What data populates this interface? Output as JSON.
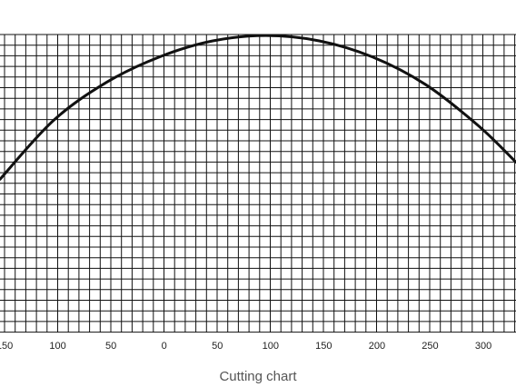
{
  "chart_data": {
    "type": "line",
    "title": "",
    "xlabel": "",
    "ylabel": "",
    "caption": "Cutting chart",
    "x_tick_labels": [
      "150",
      "100",
      "50",
      "0",
      "50",
      "100",
      "150",
      "200",
      "250",
      "300"
    ],
    "x_tick_positions": [
      -150,
      -100,
      -50,
      0,
      50,
      100,
      150,
      200,
      250,
      300
    ],
    "xlim": [
      -150,
      335
    ],
    "ylim": [
      0,
      28
    ],
    "grid": true,
    "series": [
      {
        "name": "",
        "color": "#111111",
        "x": [
          -150,
          -100,
          -50,
          0,
          50,
          100,
          150,
          200,
          250,
          300,
          335
        ],
        "y": [
          14.4,
          19.9,
          23.5,
          25.9,
          27.4,
          27.9,
          27.4,
          25.9,
          23.3,
          19.4,
          16.0
        ]
      }
    ]
  },
  "colors": {
    "grid": "#111111",
    "curve": "#111111",
    "background": "#ffffff"
  }
}
